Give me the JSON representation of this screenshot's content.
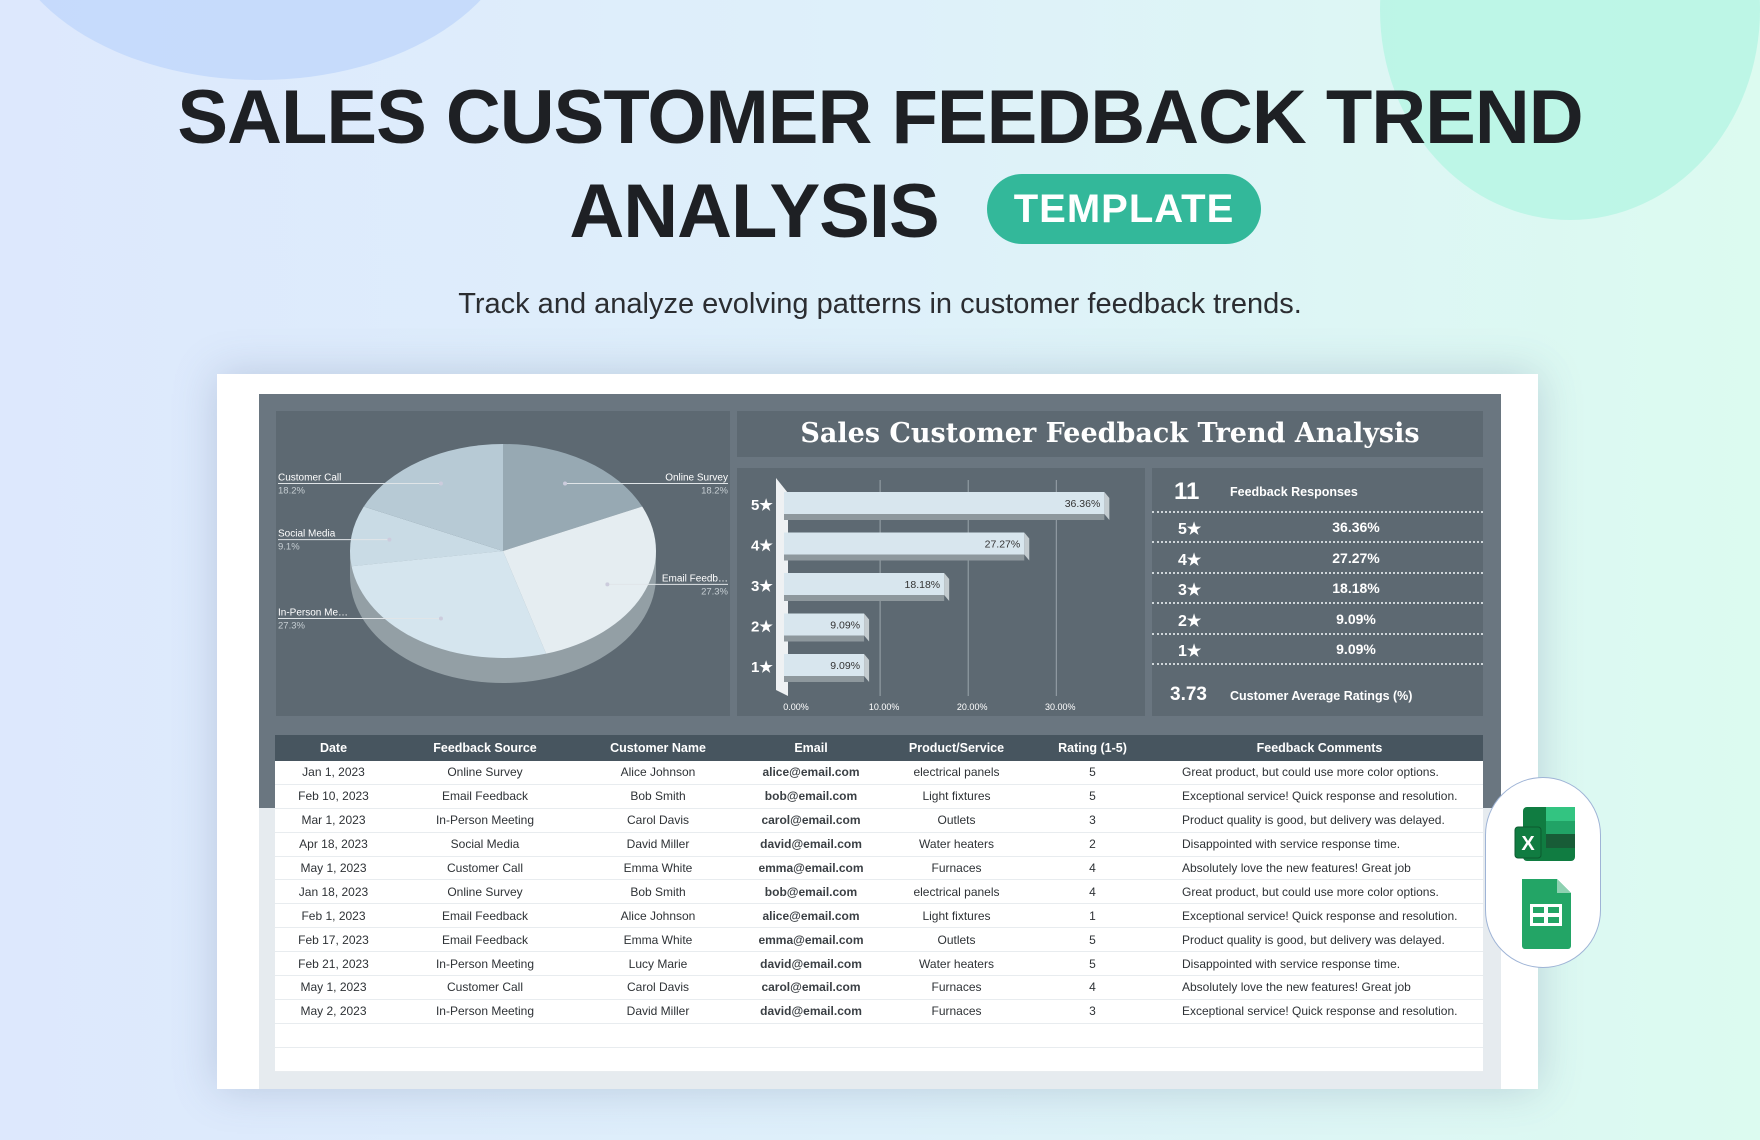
{
  "hero": {
    "title_line1": "SALES CUSTOMER FEEDBACK TREND",
    "title_line2": "ANALYSIS",
    "badge": "TEMPLATE",
    "subtitle": "Track and analyze evolving patterns in customer feedback trends."
  },
  "dashboard": {
    "title": "Sales Customer Feedback Trend Analysis",
    "stats": {
      "responses_value": "11",
      "responses_label": "Feedback Responses",
      "rows": [
        {
          "label": "5★",
          "value": "36.36%"
        },
        {
          "label": "4★",
          "value": "27.27%"
        },
        {
          "label": "3★",
          "value": "18.18%"
        },
        {
          "label": "2★",
          "value": "9.09%"
        },
        {
          "label": "1★",
          "value": "9.09%"
        }
      ],
      "average_value": "3.73",
      "average_label": "Customer Average Ratings (%)"
    }
  },
  "colors": {
    "panel": "#5d6972",
    "accent": "#33b89a",
    "table_header": "#47555f"
  },
  "chart_data": [
    {
      "type": "pie",
      "style": "3d",
      "slices": [
        {
          "label": "Online Survey",
          "value": 18.2,
          "display": "18.2%",
          "color": "#97a9b3"
        },
        {
          "label": "Email Feedb…",
          "value": 27.3,
          "display": "27.3%",
          "color": "#e5edf1"
        },
        {
          "label": "In-Person Me…",
          "value": 27.3,
          "display": "27.3%",
          "color": "#d5e5ee"
        },
        {
          "label": "Social Media",
          "value": 9.1,
          "display": "9.1%",
          "color": "#c9dbe5"
        },
        {
          "label": "Customer Call",
          "value": 18.2,
          "display": "18.2%",
          "color": "#b7cad5"
        }
      ]
    },
    {
      "type": "bar",
      "orientation": "horizontal",
      "style": "3d",
      "categories": [
        "5★",
        "4★",
        "3★",
        "2★",
        "1★"
      ],
      "values": [
        36.36,
        27.27,
        18.18,
        9.09,
        9.09
      ],
      "data_labels": [
        "36.36%",
        "27.27%",
        "18.18%",
        "9.09%",
        "9.09%"
      ],
      "xlim": [
        0,
        40
      ],
      "xticks": [
        "0.00%",
        "10.00%",
        "20.00%",
        "30.00%"
      ],
      "grid": true
    }
  ],
  "table": {
    "headers": [
      "Date",
      "Feedback Source",
      "Customer Name",
      "Email",
      "Product/Service",
      "Rating (1-5)",
      "Feedback Comments"
    ],
    "rows": [
      [
        "Jan 1, 2023",
        "Online Survey",
        "Alice Johnson",
        "alice@email.com",
        "electrical panels",
        "5",
        "Great product, but could use more color options."
      ],
      [
        "Feb 10, 2023",
        "Email Feedback",
        "Bob Smith",
        "bob@email.com",
        "Light fixtures",
        "5",
        "Exceptional service! Quick response and resolution."
      ],
      [
        "Mar 1, 2023",
        "In-Person Meeting",
        "Carol Davis",
        "carol@email.com",
        "Outlets",
        "3",
        "Product quality is good, but delivery was delayed."
      ],
      [
        "Apr 18, 2023",
        "Social Media",
        "David Miller",
        "david@email.com",
        "Water heaters",
        "2",
        "Disappointed with service response time."
      ],
      [
        "May 1, 2023",
        "Customer Call",
        "Emma White",
        "emma@email.com",
        "Furnaces",
        "4",
        "Absolutely love the new features! Great job"
      ],
      [
        "Jan 18, 2023",
        "Online Survey",
        "Bob Smith",
        "bob@email.com",
        "electrical panels",
        "4",
        "Great product, but could use more color options."
      ],
      [
        "Feb 1, 2023",
        "Email Feedback",
        "Alice Johnson",
        "alice@email.com",
        "Light fixtures",
        "1",
        "Exceptional service! Quick response and resolution."
      ],
      [
        "Feb 17, 2023",
        "Email Feedback",
        "Emma White",
        "emma@email.com",
        "Outlets",
        "5",
        "Product quality is good, but delivery was delayed."
      ],
      [
        "Feb 21, 2023",
        "In-Person Meeting",
        "Lucy Marie",
        "david@email.com",
        "Water heaters",
        "5",
        "Disappointed with service response time."
      ],
      [
        "May 1, 2023",
        "Customer Call",
        "Carol Davis",
        "carol@email.com",
        "Furnaces",
        "4",
        "Absolutely love the new features! Great job"
      ],
      [
        "May 2, 2023",
        "In-Person Meeting",
        "David Miller",
        "david@email.com",
        "Furnaces",
        "3",
        "Exceptional service! Quick response and resolution."
      ]
    ]
  },
  "apps": [
    {
      "icon": "excel-icon",
      "letter": "X"
    },
    {
      "icon": "google-sheets-icon"
    }
  ]
}
